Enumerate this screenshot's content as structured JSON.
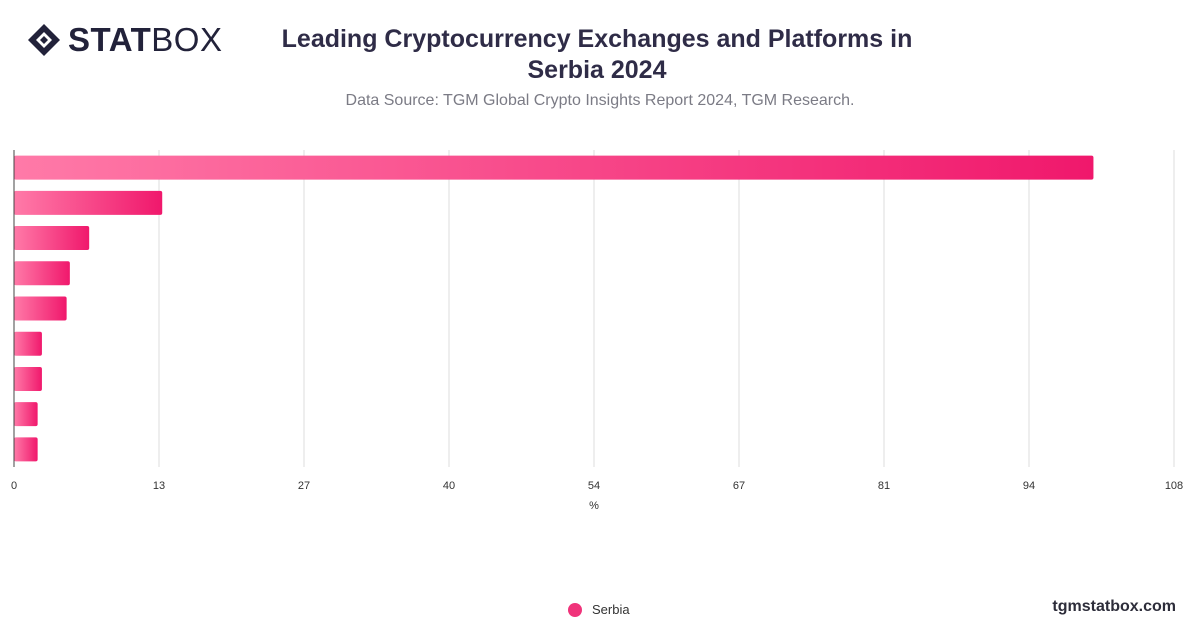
{
  "brand": {
    "logo_bold": "STAT",
    "logo_light": "BOX",
    "website": "tgmstatbox.com"
  },
  "title": "Leading Cryptocurrency Exchanges and Platforms in Serbia 2024",
  "subtitle": "Data Source: TGM Global Crypto Insights Report 2024, TGM Research.",
  "colors": {
    "bar_start": "#ff7aa8",
    "bar_end": "#f0186c",
    "grid": "#dedede",
    "axis": "#444444",
    "text": "#333333"
  },
  "chart_data": {
    "type": "bar",
    "orientation": "horizontal",
    "categories": [
      "",
      "",
      "",
      "",
      "",
      "",
      "",
      "",
      ""
    ],
    "series": [
      {
        "name": "Serbia",
        "values": [
          100.5,
          13.8,
          7.0,
          5.2,
          4.9,
          2.6,
          2.6,
          2.2,
          2.2
        ]
      }
    ],
    "xlabel": "%",
    "xlim": [
      0,
      108
    ],
    "xticks": [
      "0",
      "13",
      "27",
      "40",
      "54",
      "67",
      "81",
      "94",
      "108"
    ],
    "grid": true,
    "legend": "bottom-center"
  }
}
